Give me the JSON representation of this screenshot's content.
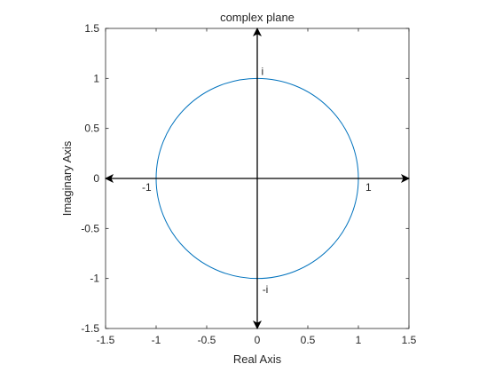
{
  "chart_data": {
    "type": "line",
    "title": "complex plane",
    "xlabel": "Real Axis",
    "ylabel": "Imaginary Axis",
    "xlim": [
      -1.5,
      1.5
    ],
    "ylim": [
      -1.5,
      1.5
    ],
    "x_ticks": [
      -1.5,
      -1,
      -0.5,
      0,
      0.5,
      1,
      1.5
    ],
    "y_ticks": [
      -1.5,
      -1,
      -0.5,
      0,
      0.5,
      1,
      1.5
    ],
    "x_tick_labels": [
      "-1.5",
      "-1",
      "-0.5",
      "0",
      "0.5",
      "1",
      "1.5"
    ],
    "y_tick_labels": [
      "-1.5",
      "-1",
      "-0.5",
      "0",
      "0.5",
      "1",
      "1.5"
    ],
    "grid": false,
    "series": [
      {
        "shape": "circle",
        "center": [
          0,
          0
        ],
        "radius": 1,
        "color": "#0072BD"
      }
    ],
    "arrows": [
      {
        "from": [
          -1.5,
          0
        ],
        "to": [
          1.5,
          0
        ],
        "both_ends": true,
        "color": "#000000"
      },
      {
        "from": [
          0,
          -1.5
        ],
        "to": [
          0,
          1.5
        ],
        "both_ends": true,
        "color": "#000000"
      }
    ],
    "annotations": [
      {
        "text": "i",
        "x": 0.04,
        "y": 1.07
      },
      {
        "text": "-i",
        "x": 0.05,
        "y": -1.11
      },
      {
        "text": "-1",
        "x": -1.14,
        "y": -0.09
      },
      {
        "text": "1",
        "x": 1.07,
        "y": -0.09
      }
    ]
  }
}
